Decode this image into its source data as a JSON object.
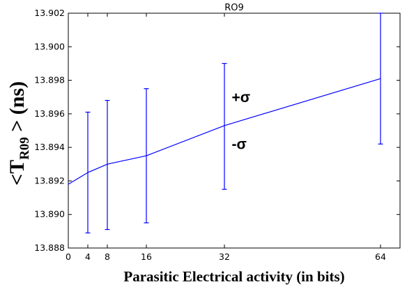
{
  "chart_data": {
    "type": "line",
    "title": "RO9",
    "xlabel": "Parasitic Electrical activity (in bits)",
    "ylabel": {
      "prefix": "<T",
      "subscript": "R09",
      "suffix": " > (ns)"
    },
    "x": [
      0,
      4,
      8,
      16,
      32,
      64
    ],
    "x_ticks": [
      "0",
      "4",
      "8",
      "16",
      "32",
      "64"
    ],
    "xlim": [
      0,
      68
    ],
    "ylim": [
      13.888,
      13.902
    ],
    "y_ticks": [
      "13.888",
      "13.890",
      "13.892",
      "13.894",
      "13.896",
      "13.898",
      "13.900",
      "13.902"
    ],
    "grid": false,
    "series": [
      {
        "color": "#0000ff",
        "values": [
          13.8918,
          13.8925,
          13.893,
          13.8935,
          13.8953,
          13.8981
        ],
        "error_lower": [
          null,
          13.8889,
          13.8891,
          13.8895,
          13.8915,
          13.8942
        ],
        "error_upper": [
          null,
          13.8961,
          13.8968,
          13.8975,
          13.899,
          13.902
        ]
      }
    ],
    "annotations": [
      {
        "text": "+σ",
        "x": 33.5,
        "y": 13.8967
      },
      {
        "text": "-σ",
        "x": 33.5,
        "y": 13.8939
      }
    ]
  }
}
